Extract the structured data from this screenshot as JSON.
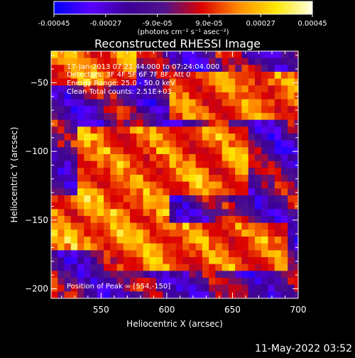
{
  "colorbar": {
    "ticks": [
      "-0.00045",
      "-0.00027",
      "-9.0e-05",
      "9.0e-05",
      "0.00027",
      "0.00045"
    ],
    "unit_label": "(photons cm⁻² s⁻¹ asec⁻²)",
    "colors": [
      "#0000ff",
      "#5a00ff",
      "#3c0096",
      "#50148c",
      "#dc0000",
      "#ff8c00",
      "#ffe600",
      "#ffffe6"
    ]
  },
  "chart_data": {
    "type": "heatmap",
    "title": "Reconstructed RHESSI Image",
    "xlabel": "Heliocentric X (arcsec)",
    "ylabel": "Heliocentric Y (arcsec)",
    "xlim": [
      512,
      700
    ],
    "ylim": [
      -207,
      -27
    ],
    "xticks": [
      550,
      600,
      650,
      700
    ],
    "yticks": [
      -50,
      -100,
      -150,
      -200
    ],
    "xtick_labels": [
      "550",
      "600",
      "650",
      "700"
    ],
    "ytick_labels": [
      "−50",
      "−100",
      "−150",
      "−200"
    ],
    "value_range": [
      -0.00045,
      0.00045
    ],
    "grid": false,
    "annotations": {
      "time": "17-Jan-2013 07:21:44.000 to 07:24:04.000",
      "detectors": "Detectors: 3F 4F 5F 6F 7F 8F, Att 0",
      "energy": "Energy Range: 25.0 - 50.0 keV",
      "clean": "Clean     Total counts: 2.51E+03",
      "peak": "Position of Peak = [554,-150]"
    },
    "peak_position": [
      554,
      -150
    ],
    "bright_bands": [
      {
        "x0": 512,
        "y0": -52,
        "x1": 575,
        "y1": -27,
        "value": 0.0004
      },
      {
        "x0": 600,
        "y0": -75,
        "x1": 700,
        "y1": -40,
        "value": 0.00032
      },
      {
        "x0": 530,
        "y0": -130,
        "x1": 660,
        "y1": -80,
        "value": 0.00036
      },
      {
        "x0": 512,
        "y0": -170,
        "x1": 600,
        "y1": -130,
        "value": 0.00042
      },
      {
        "x0": 560,
        "y0": -185,
        "x1": 690,
        "y1": -150,
        "value": 0.00034
      }
    ]
  },
  "footer": {
    "timestamp": "11-May-2022 03:52"
  }
}
